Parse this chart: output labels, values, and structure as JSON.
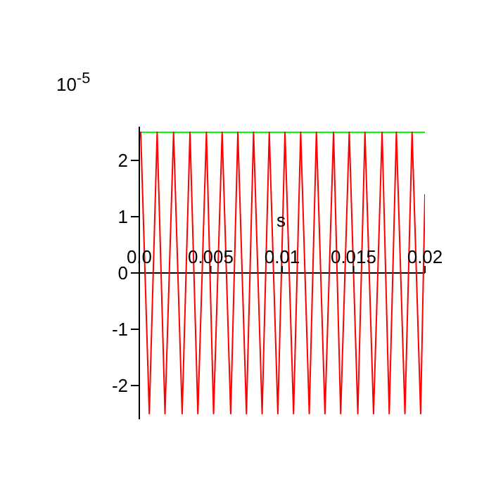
{
  "chart_data": {
    "type": "line",
    "xlabel": "s",
    "ylabel": "10$^{-5}$",
    "x": [
      0,
      0.0001,
      0.0007,
      0.00125,
      0.0018,
      0.0024,
      0.003,
      0.00355,
      0.0041,
      0.0047,
      0.0052,
      0.0058,
      0.0064,
      0.0069,
      0.0075,
      0.008,
      0.0086,
      0.0091,
      0.0097,
      0.0102,
      0.0108,
      0.0113,
      0.0119,
      0.0124,
      0.013,
      0.0136,
      0.0141,
      0.0147,
      0.0153,
      0.0158,
      0.0164,
      0.017,
      0.0175,
      0.018,
      0.0186,
      0.0191,
      0.0197,
      0.02
    ],
    "series": [
      {
        "color": "#ff0000",
        "values": [
          2.4,
          2.5,
          -2.5,
          2.5,
          -2.5,
          2.5,
          -2.5,
          2.5,
          -2.5,
          2.5,
          -2.5,
          2.5,
          -2.5,
          2.5,
          -2.5,
          2.5,
          -2.5,
          2.5,
          -2.5,
          2.5,
          -2.5,
          2.5,
          -2.5,
          2.5,
          -2.5,
          2.5,
          -2.5,
          2.5,
          -2.5,
          2.5,
          -2.5,
          2.5,
          -2.5,
          2.5,
          -2.5,
          2.5,
          -2.5,
          1.4
        ]
      }
    ],
    "ref_lines": [
      {
        "axis": "y",
        "value": 2.5,
        "color": "#00ff00"
      }
    ],
    "xlim": [
      0,
      0.02
    ],
    "xticks": [
      {
        "value": 0,
        "label": "0.0"
      },
      0.005,
      0.01,
      0.015,
      0.02
    ],
    "ylim": [
      -2.6,
      2.6
    ],
    "yticks": [
      -2,
      -1,
      0,
      1,
      2
    ],
    "grid": false,
    "legend": false,
    "marker": "none",
    "line_style": "solid"
  }
}
